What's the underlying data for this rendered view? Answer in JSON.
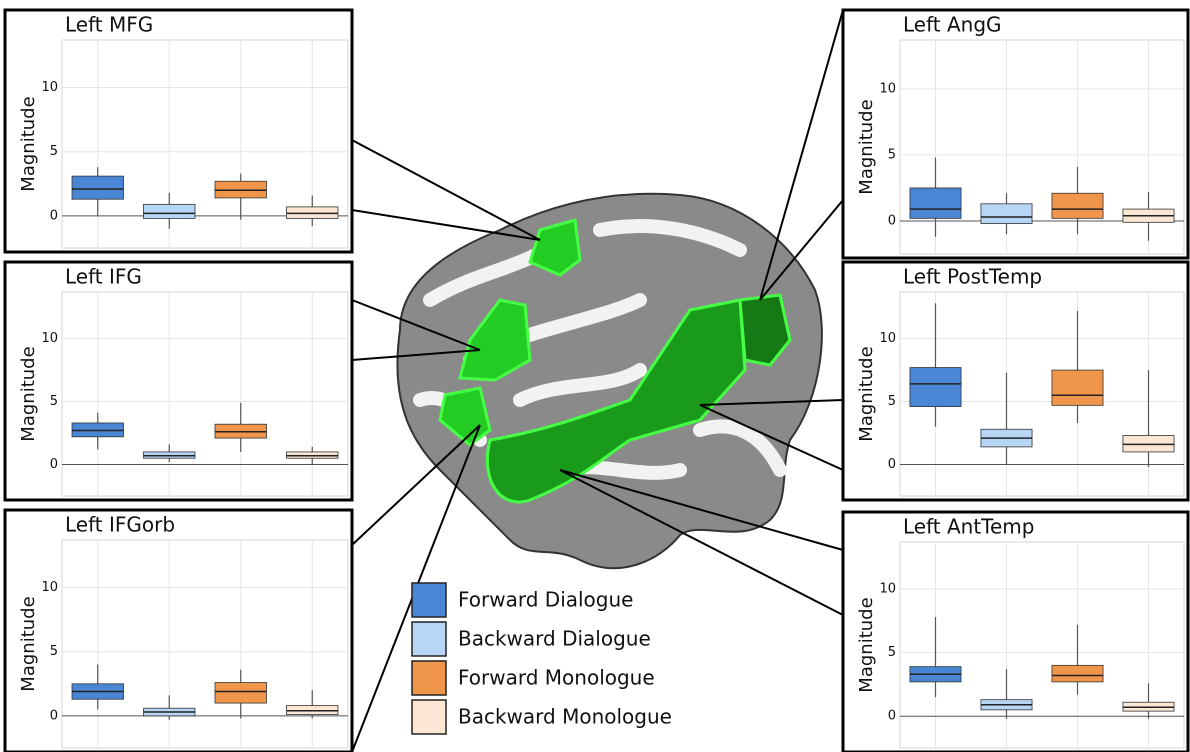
{
  "chart_data": [
    {
      "type": "box",
      "title": "Left MFG",
      "y_label": "Magnitude",
      "ylim": [
        -2.5,
        13.7
      ],
      "yticks": [
        0,
        5,
        10
      ],
      "series": [
        {
          "name": "Forward Dialogue",
          "color": "#4a86d4",
          "min": 0,
          "q1": 1.3,
          "median": 2.1,
          "q3": 3.1,
          "max": 3.8
        },
        {
          "name": "Backward Dialogue",
          "color": "#b7d6f5",
          "min": -1,
          "q1": -0.2,
          "median": 0.2,
          "q3": 0.9,
          "max": 1.8
        },
        {
          "name": "Forward Monologue",
          "color": "#f0964a",
          "min": -0.3,
          "q1": 1.4,
          "median": 2,
          "q3": 2.7,
          "max": 3.3
        },
        {
          "name": "Backward Monologue",
          "color": "#fbe7d3",
          "min": -0.8,
          "q1": -0.2,
          "median": 0.2,
          "q3": 0.7,
          "max": 1.6
        }
      ]
    },
    {
      "type": "box",
      "title": "Left IFG",
      "y_label": "Magnitude",
      "ylim": [
        -2.5,
        13.7
      ],
      "yticks": [
        0,
        5,
        10
      ],
      "series": [
        {
          "name": "Forward Dialogue",
          "color": "#4a86d4",
          "min": 1.2,
          "q1": 2.2,
          "median": 2.7,
          "q3": 3.3,
          "max": 4.1
        },
        {
          "name": "Backward Dialogue",
          "color": "#b7d6f5",
          "min": 0.2,
          "q1": 0.5,
          "median": 0.7,
          "q3": 1.0,
          "max": 1.6
        },
        {
          "name": "Forward Monologue",
          "color": "#f0964a",
          "min": 1,
          "q1": 2.1,
          "median": 2.6,
          "q3": 3.2,
          "max": 4.9
        },
        {
          "name": "Backward Monologue",
          "color": "#fbe7d3",
          "min": 0,
          "q1": 0.5,
          "median": 0.7,
          "q3": 1.0,
          "max": 1.4
        }
      ]
    },
    {
      "type": "box",
      "title": "Left IFGorb",
      "y_label": "Magnitude",
      "ylim": [
        -2.5,
        13.7
      ],
      "yticks": [
        0,
        5,
        10
      ],
      "series": [
        {
          "name": "Forward Dialogue",
          "color": "#4a86d4",
          "min": 0.5,
          "q1": 1.3,
          "median": 1.9,
          "q3": 2.5,
          "max": 4
        },
        {
          "name": "Backward Dialogue",
          "color": "#b7d6f5",
          "min": -0.3,
          "q1": 0,
          "median": 0.3,
          "q3": 0.6,
          "max": 1.6
        },
        {
          "name": "Forward Monologue",
          "color": "#f0964a",
          "min": -0.2,
          "q1": 1,
          "median": 1.9,
          "q3": 2.6,
          "max": 3.6
        },
        {
          "name": "Backward Monologue",
          "color": "#fbe7d3",
          "min": -0.2,
          "q1": 0.1,
          "median": 0.4,
          "q3": 0.8,
          "max": 2
        }
      ]
    },
    {
      "type": "box",
      "title": "Left AngG",
      "y_label": "Magnitude",
      "ylim": [
        -2.5,
        13.7
      ],
      "yticks": [
        0,
        5,
        10
      ],
      "series": [
        {
          "name": "Forward Dialogue",
          "color": "#4a86d4",
          "min": -1.2,
          "q1": 0.2,
          "median": 0.9,
          "q3": 2.5,
          "max": 4.8
        },
        {
          "name": "Backward Dialogue",
          "color": "#b7d6f5",
          "min": -1,
          "q1": -0.2,
          "median": 0.3,
          "q3": 1.3,
          "max": 2.1
        },
        {
          "name": "Forward Monologue",
          "color": "#f0964a",
          "min": -1,
          "q1": 0.2,
          "median": 0.9,
          "q3": 2.1,
          "max": 4.1
        },
        {
          "name": "Backward Monologue",
          "color": "#fbe7d3",
          "min": -1.5,
          "q1": -0.1,
          "median": 0.4,
          "q3": 0.9,
          "max": 2.2
        }
      ]
    },
    {
      "type": "box",
      "title": "Left PostTemp",
      "y_label": "Magnitude",
      "ylim": [
        -2.5,
        13.7
      ],
      "yticks": [
        0,
        5,
        10
      ],
      "series": [
        {
          "name": "Forward Dialogue",
          "color": "#4a86d4",
          "min": 3,
          "q1": 4.6,
          "median": 6.4,
          "q3": 7.7,
          "max": 12.8
        },
        {
          "name": "Backward Dialogue",
          "color": "#b7d6f5",
          "min": 0,
          "q1": 1.4,
          "median": 2.1,
          "q3": 2.8,
          "max": 7.3
        },
        {
          "name": "Forward Monologue",
          "color": "#f0964a",
          "min": 3.3,
          "q1": 4.7,
          "median": 5.5,
          "q3": 7.5,
          "max": 12.2
        },
        {
          "name": "Backward Monologue",
          "color": "#fbe7d3",
          "min": -0.2,
          "q1": 1,
          "median": 1.6,
          "q3": 2.3,
          "max": 7.5
        }
      ]
    },
    {
      "type": "box",
      "title": "Left AntTemp",
      "y_label": "Magnitude",
      "ylim": [
        -2.5,
        13.7
      ],
      "yticks": [
        0,
        5,
        10
      ],
      "series": [
        {
          "name": "Forward Dialogue",
          "color": "#4a86d4",
          "min": 1.5,
          "q1": 2.7,
          "median": 3.3,
          "q3": 3.9,
          "max": 7.8
        },
        {
          "name": "Backward Dialogue",
          "color": "#b7d6f5",
          "min": -0.2,
          "q1": 0.5,
          "median": 0.9,
          "q3": 1.3,
          "max": 3.7
        },
        {
          "name": "Forward Monologue",
          "color": "#f0964a",
          "min": 1.7,
          "q1": 2.7,
          "median": 3.2,
          "q3": 4,
          "max": 7.2
        },
        {
          "name": "Backward Monologue",
          "color": "#fbe7d3",
          "min": -0.2,
          "q1": 0.4,
          "median": 0.7,
          "q3": 1.1,
          "max": 2.6
        }
      ]
    }
  ]
}
